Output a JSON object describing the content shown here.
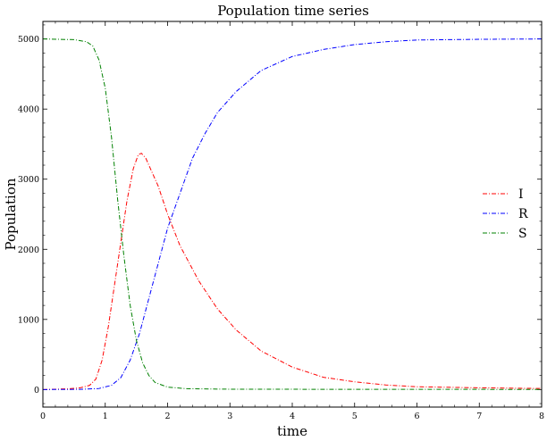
{
  "chart_data": {
    "type": "line",
    "title": "Population time series",
    "xlabel": "time",
    "ylabel": "Population",
    "xlim": [
      0,
      8
    ],
    "ylim": [
      -250,
      5250
    ],
    "x_ticks": [
      0,
      1,
      2,
      3,
      4,
      5,
      6,
      7,
      8
    ],
    "y_ticks": [
      0,
      1000,
      2000,
      3000,
      4000,
      5000
    ],
    "grid": false,
    "legend_position": "center-right",
    "series": [
      {
        "name": "I",
        "color": "#ff0000",
        "points": [
          [
            0,
            0
          ],
          [
            0.4,
            10
          ],
          [
            0.6,
            25
          ],
          [
            0.75,
            60
          ],
          [
            0.85,
            150
          ],
          [
            0.95,
            420
          ],
          [
            1.05,
            900
          ],
          [
            1.15,
            1500
          ],
          [
            1.25,
            2100
          ],
          [
            1.35,
            2700
          ],
          [
            1.45,
            3150
          ],
          [
            1.53,
            3350
          ],
          [
            1.58,
            3370
          ],
          [
            1.65,
            3300
          ],
          [
            1.75,
            3100
          ],
          [
            1.85,
            2900
          ],
          [
            2.0,
            2500
          ],
          [
            2.2,
            2050
          ],
          [
            2.5,
            1550
          ],
          [
            2.8,
            1150
          ],
          [
            3.1,
            850
          ],
          [
            3.5,
            550
          ],
          [
            4.0,
            320
          ],
          [
            4.5,
            175
          ],
          [
            5.0,
            110
          ],
          [
            5.5,
            65
          ],
          [
            6.0,
            40
          ],
          [
            7.0,
            25
          ],
          [
            8.0,
            15
          ]
        ]
      },
      {
        "name": "R",
        "color": "#0000ff",
        "points": [
          [
            0,
            0
          ],
          [
            0.6,
            3
          ],
          [
            0.9,
            15
          ],
          [
            1.1,
            60
          ],
          [
            1.25,
            170
          ],
          [
            1.4,
            420
          ],
          [
            1.55,
            800
          ],
          [
            1.7,
            1300
          ],
          [
            1.85,
            1800
          ],
          [
            2.0,
            2300
          ],
          [
            2.2,
            2800
          ],
          [
            2.4,
            3300
          ],
          [
            2.6,
            3650
          ],
          [
            2.8,
            3950
          ],
          [
            3.1,
            4250
          ],
          [
            3.5,
            4550
          ],
          [
            4.0,
            4750
          ],
          [
            4.5,
            4850
          ],
          [
            5.0,
            4920
          ],
          [
            5.5,
            4960
          ],
          [
            6.0,
            4985
          ],
          [
            7.0,
            4995
          ],
          [
            8.0,
            5000
          ]
        ]
      },
      {
        "name": "S",
        "color": "#008000",
        "points": [
          [
            0,
            5000
          ],
          [
            0.5,
            4990
          ],
          [
            0.7,
            4960
          ],
          [
            0.8,
            4900
          ],
          [
            0.9,
            4700
          ],
          [
            1.0,
            4300
          ],
          [
            1.1,
            3600
          ],
          [
            1.2,
            2700
          ],
          [
            1.3,
            1900
          ],
          [
            1.4,
            1200
          ],
          [
            1.5,
            700
          ],
          [
            1.6,
            380
          ],
          [
            1.7,
            200
          ],
          [
            1.8,
            100
          ],
          [
            2.0,
            35
          ],
          [
            2.3,
            12
          ],
          [
            3.0,
            5
          ],
          [
            5.0,
            3
          ],
          [
            8.0,
            2
          ]
        ]
      }
    ]
  }
}
